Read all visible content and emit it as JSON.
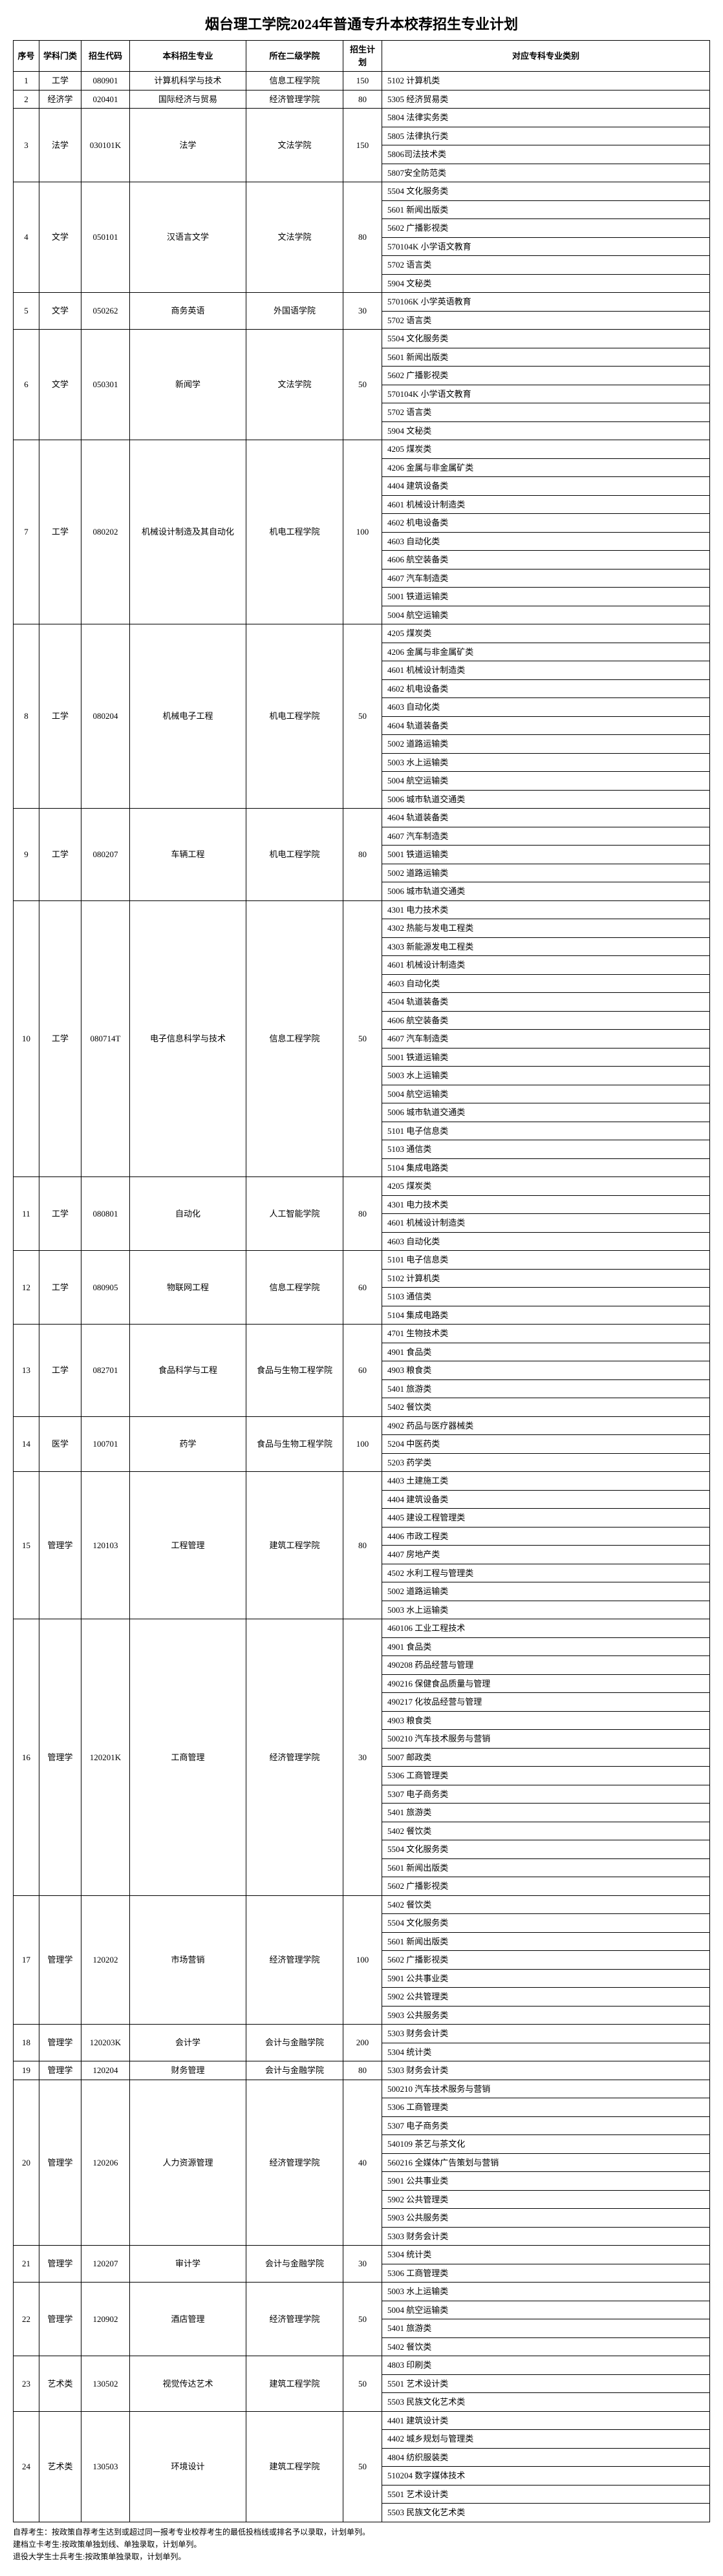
{
  "title": "烟台理工学院2024年普通专升本校荐招生专业计划",
  "headers": {
    "seq": "序号",
    "cat": "学科门类",
    "code": "招生代码",
    "major": "本科招生专业",
    "college": "所在二级学院",
    "plan": "招生计划",
    "corr": "对应专科专业类别"
  },
  "rows": [
    {
      "seq": "1",
      "cat": "工学",
      "code": "080901",
      "major": "计算机科学与技术",
      "college": "信息工程学院",
      "plan": "150",
      "corr": [
        "5102 计算机类"
      ]
    },
    {
      "seq": "2",
      "cat": "经济学",
      "code": "020401",
      "major": "国际经济与贸易",
      "college": "经济管理学院",
      "plan": "80",
      "corr": [
        "5305 经济贸易类"
      ]
    },
    {
      "seq": "3",
      "cat": "法学",
      "code": "030101K",
      "major": "法学",
      "college": "文法学院",
      "plan": "150",
      "corr": [
        "5804 法律实务类",
        "5805 法律执行类",
        "5806司法技术类",
        "5807安全防范类"
      ]
    },
    {
      "seq": "4",
      "cat": "文学",
      "code": "050101",
      "major": "汉语言文学",
      "college": "文法学院",
      "plan": "80",
      "corr": [
        "5504 文化服务类",
        "5601 新闻出版类",
        "5602 广播影视类",
        "570104K 小学语文教育",
        "5702 语言类",
        "5904 文秘类"
      ]
    },
    {
      "seq": "5",
      "cat": "文学",
      "code": "050262",
      "major": "商务英语",
      "college": "外国语学院",
      "plan": "30",
      "corr": [
        "570106K 小学英语教育",
        "5702 语言类"
      ]
    },
    {
      "seq": "6",
      "cat": "文学",
      "code": "050301",
      "major": "新闻学",
      "college": "文法学院",
      "plan": "50",
      "corr": [
        "5504 文化服务类",
        "5601 新闻出版类",
        "5602 广播影视类",
        "570104K 小学语文教育",
        "5702 语言类",
        "5904 文秘类"
      ]
    },
    {
      "seq": "7",
      "cat": "工学",
      "code": "080202",
      "major": "机械设计制造及其自动化",
      "college": "机电工程学院",
      "plan": "100",
      "corr": [
        "4205 煤炭类",
        "4206 金属与非金属矿类",
        "4404 建筑设备类",
        "4601 机械设计制造类",
        "4602 机电设备类",
        "4603 自动化类",
        "4606 航空装备类",
        "4607 汽车制造类",
        "5001 铁道运输类",
        "5004 航空运输类"
      ]
    },
    {
      "seq": "8",
      "cat": "工学",
      "code": "080204",
      "major": "机械电子工程",
      "college": "机电工程学院",
      "plan": "50",
      "corr": [
        "4205 煤炭类",
        "4206 金属与非金属矿类",
        "4601 机械设计制造类",
        "4602 机电设备类",
        "4603 自动化类",
        "4604 轨道装备类",
        "5002 道路运输类",
        "5003 水上运输类",
        "5004 航空运输类",
        "5006 城市轨道交通类"
      ]
    },
    {
      "seq": "9",
      "cat": "工学",
      "code": "080207",
      "major": "车辆工程",
      "college": "机电工程学院",
      "plan": "80",
      "corr": [
        "4604 轨道装备类",
        "4607 汽车制造类",
        "5001 铁道运输类",
        "5002 道路运输类",
        "5006 城市轨道交通类"
      ]
    },
    {
      "seq": "10",
      "cat": "工学",
      "code": "080714T",
      "major": "电子信息科学与技术",
      "college": "信息工程学院",
      "plan": "50",
      "corr": [
        "4301 电力技术类",
        "4302 热能与发电工程类",
        "4303 新能源发电工程类",
        "4601 机械设计制造类",
        "4603 自动化类",
        "4504 轨道装备类",
        "4606 航空装备类",
        "4607 汽车制造类",
        "5001 铁道运输类",
        "5003 水上运输类",
        "5004 航空运输类",
        "5006 城市轨道交通类",
        "5101 电子信息类",
        "5103 通信类",
        "5104 集成电路类"
      ]
    },
    {
      "seq": "11",
      "cat": "工学",
      "code": "080801",
      "major": "自动化",
      "college": "人工智能学院",
      "plan": "80",
      "corr": [
        "4205 煤炭类",
        "4301 电力技术类",
        "4601 机械设计制造类",
        "4603 自动化类"
      ]
    },
    {
      "seq": "12",
      "cat": "工学",
      "code": "080905",
      "major": "物联网工程",
      "college": "信息工程学院",
      "plan": "60",
      "corr": [
        "5101 电子信息类",
        "5102 计算机类",
        "5103 通信类",
        "5104 集成电路类"
      ]
    },
    {
      "seq": "13",
      "cat": "工学",
      "code": "082701",
      "major": "食品科学与工程",
      "college": "食品与生物工程学院",
      "plan": "60",
      "corr": [
        "4701 生物技术类",
        "4901 食品类",
        "4903 粮食类",
        "5401 旅游类",
        "5402 餐饮类"
      ]
    },
    {
      "seq": "14",
      "cat": "医学",
      "code": "100701",
      "major": "药学",
      "college": "食品与生物工程学院",
      "plan": "100",
      "corr": [
        "4902 药品与医疗器械类",
        "5204 中医药类",
        "5203 药学类"
      ]
    },
    {
      "seq": "15",
      "cat": "管理学",
      "code": "120103",
      "major": "工程管理",
      "college": "建筑工程学院",
      "plan": "80",
      "corr": [
        "4403 土建施工类",
        "4404 建筑设备类",
        "4405 建设工程管理类",
        "4406 市政工程类",
        "4407 房地产类",
        "4502 水利工程与管理类",
        "5002 道路运输类",
        "5003 水上运输类"
      ]
    },
    {
      "seq": "16",
      "cat": "管理学",
      "code": "120201K",
      "major": "工商管理",
      "college": "经济管理学院",
      "plan": "30",
      "corr": [
        "460106 工业工程技术",
        "4901 食品类",
        "490208 药品经营与管理",
        "490216 保健食品质量与管理",
        "490217 化妆品经营与管理",
        "4903 粮食类",
        "500210 汽车技术服务与营销",
        "5007 邮政类",
        "5306 工商管理类",
        "5307 电子商务类",
        "5401 旅游类",
        "5402 餐饮类",
        "5504 文化服务类",
        "5601 新闻出版类",
        "5602 广播影视类"
      ]
    },
    {
      "seq": "17",
      "cat": "管理学",
      "code": "120202",
      "major": "市场营销",
      "college": "经济管理学院",
      "plan": "100",
      "corr": [
        "5402 餐饮类",
        "5504 文化服务类",
        "5601 新闻出版类",
        "5602 广播影视类",
        "5901 公共事业类",
        "5902 公共管理类",
        "5903 公共服务类"
      ]
    },
    {
      "seq": "18",
      "cat": "管理学",
      "code": "120203K",
      "major": "会计学",
      "college": "会计与金融学院",
      "plan": "200",
      "corr": [
        "5303 财务会计类",
        "5304 统计类"
      ]
    },
    {
      "seq": "19",
      "cat": "管理学",
      "code": "120204",
      "major": "财务管理",
      "college": "会计与金融学院",
      "plan": "80",
      "corr": [
        "5303 财务会计类"
      ]
    },
    {
      "seq": "20",
      "cat": "管理学",
      "code": "120206",
      "major": "人力资源管理",
      "college": "经济管理学院",
      "plan": "40",
      "corr": [
        "500210 汽车技术服务与营销",
        "5306 工商管理类",
        "5307 电子商务类",
        "540109 茶艺与茶文化",
        "560216 全媒体广告策划与营销",
        "5901 公共事业类",
        "5902 公共管理类",
        "5903 公共服务类",
        "5303 财务会计类"
      ]
    },
    {
      "seq": "21",
      "cat": "管理学",
      "code": "120207",
      "major": "审计学",
      "college": "会计与金融学院",
      "plan": "30",
      "corr": [
        "5304 统计类",
        "5306 工商管理类"
      ]
    },
    {
      "seq": "22",
      "cat": "管理学",
      "code": "120902",
      "major": "酒店管理",
      "college": "经济管理学院",
      "plan": "50",
      "corr": [
        "5003 水上运输类",
        "5004 航空运输类",
        "5401 旅游类",
        "5402 餐饮类"
      ]
    },
    {
      "seq": "23",
      "cat": "艺术类",
      "code": "130502",
      "major": "视觉传达艺术",
      "college": "建筑工程学院",
      "plan": "50",
      "corr": [
        "4803 印刷类",
        "5501 艺术设计类",
        "5503 民族文化艺术类"
      ]
    },
    {
      "seq": "24",
      "cat": "艺术类",
      "code": "130503",
      "major": "环境设计",
      "college": "建筑工程学院",
      "plan": "50",
      "corr": [
        "4401 建筑设计类",
        "4402 城乡规划与管理类",
        "4804 纺织服装类",
        "510204 数字媒体技术",
        "5501 艺术设计类",
        "5503 民族文化艺术类"
      ]
    }
  ],
  "notes": [
    "自荐考生：按政策自荐考生达到或超过同一报考专业校荐考生的最低投档线或排名予以录取，计划单列。",
    "建档立卡考生:按政策单独划线、单独录取，计划单列。",
    "退役大学生士兵考生:按政策单独录取，计划单列。"
  ]
}
